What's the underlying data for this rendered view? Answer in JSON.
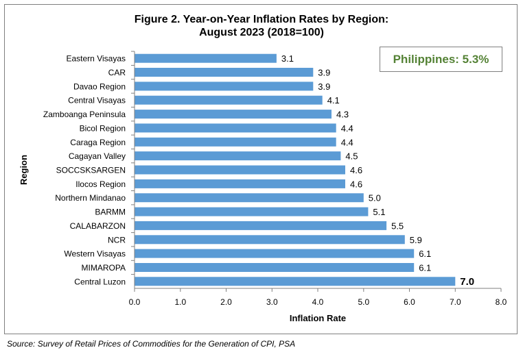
{
  "title": {
    "line1": "Figure 2. Year-on-Year Inflation Rates by Region:",
    "line2": "August 2023 (2018=100)"
  },
  "callout": "Philippines: 5.3%",
  "source": "Source: Survey of Retail Prices of Commodities for the Generation of CPI, PSA",
  "colors": {
    "bar": "#5b9bd5",
    "callout_text": "#548235",
    "frame": "#7f7f7f"
  },
  "chart_data": {
    "type": "bar",
    "orientation": "horizontal",
    "title": "Figure 2. Year-on-Year Inflation Rates by Region: August 2023 (2018=100)",
    "xlabel": "Inflation Rate",
    "ylabel": "Region",
    "xlim": [
      0,
      8
    ],
    "xticks": [
      "0.0",
      "1.0",
      "2.0",
      "3.0",
      "4.0",
      "5.0",
      "6.0",
      "7.0",
      "8.0"
    ],
    "grid": false,
    "categories": [
      "Eastern Visayas",
      "CAR",
      "Davao Region",
      "Central Visayas",
      "Zamboanga Peninsula",
      "Bicol Region",
      "Caraga Region",
      "Cagayan Valley",
      "SOCCSKSARGEN",
      "Ilocos Region",
      "Northern Mindanao",
      "BARMM",
      "CALABARZON",
      "NCR",
      "Western Visayas",
      "MIMAROPA",
      "Central Luzon"
    ],
    "values": [
      3.1,
      3.9,
      3.9,
      4.1,
      4.3,
      4.4,
      4.4,
      4.5,
      4.6,
      4.6,
      5.0,
      5.1,
      5.5,
      5.9,
      6.1,
      6.1,
      7.0
    ],
    "data_labels": [
      "3.1",
      "3.9",
      "3.9",
      "4.1",
      "4.3",
      "4.4",
      "4.4",
      "4.5",
      "4.6",
      "4.6",
      "5.0",
      "5.1",
      "5.5",
      "5.9",
      "6.1",
      "6.1",
      "7.0"
    ],
    "highlight_label": "7.0"
  }
}
